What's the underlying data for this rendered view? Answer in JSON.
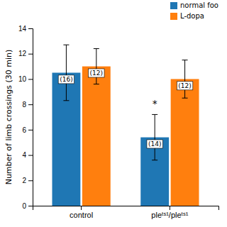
{
  "chart_data": {
    "type": "bar",
    "categories": [
      "control",
      "pleᵗˢ¹/pleᵗˢ¹"
    ],
    "series": [
      {
        "name": "normal foo",
        "values": [
          10.5,
          5.4
        ],
        "errors": [
          2.2,
          1.8
        ],
        "n_labels": [
          "(16)",
          "(14)"
        ]
      },
      {
        "name": "L-dopa",
        "values": [
          11.0,
          10.0
        ],
        "errors": [
          1.4,
          1.5
        ],
        "n_labels": [
          "(12)",
          "(12)"
        ]
      }
    ],
    "ylabel": "Number of limb crossings (30 min)",
    "ylim": [
      0,
      14
    ],
    "yticks": [
      0,
      2,
      4,
      6,
      8,
      10,
      12,
      14
    ],
    "annotations": [
      {
        "text": "*",
        "x": "pleᵗˢ¹/pleᵗˢ¹",
        "series": "normal foo",
        "y": 8.0
      }
    ],
    "legend": "upper right",
    "grid": false
  }
}
